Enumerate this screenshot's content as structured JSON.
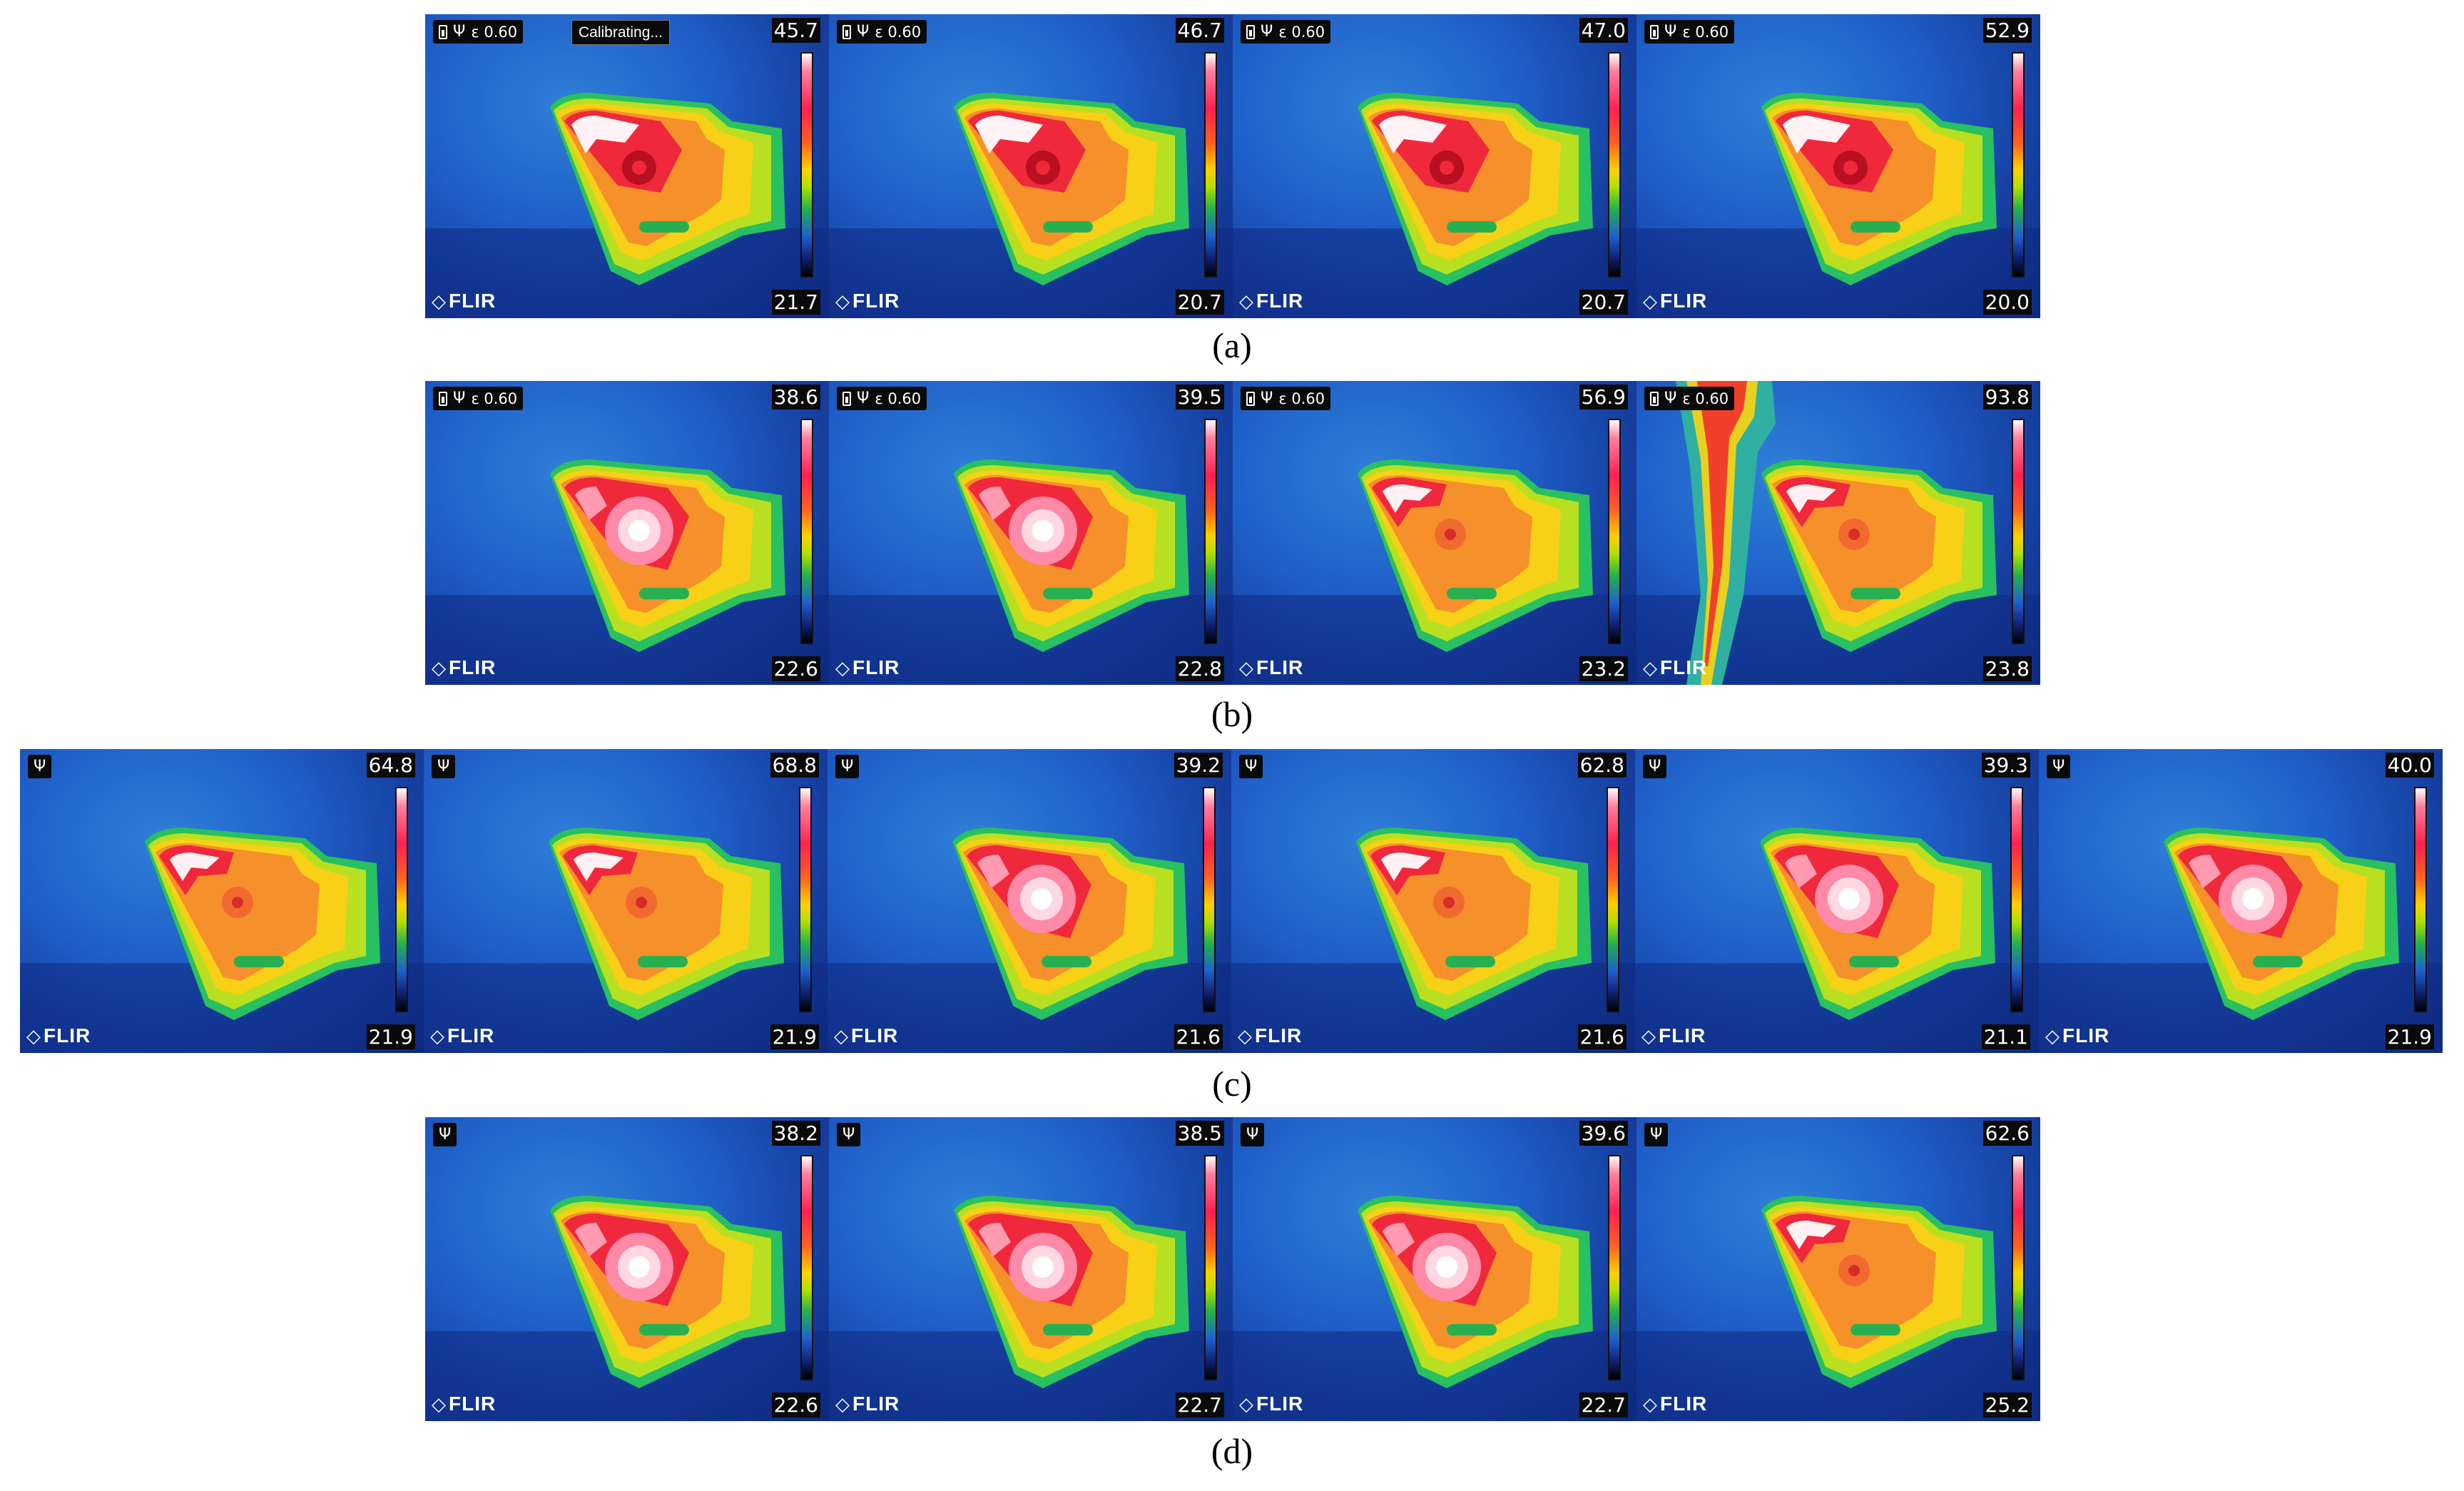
{
  "rows": [
    {
      "caption": "(a)",
      "panels": [
        {
          "min": "21.7",
          "max": "45.7",
          "status": "ε 0.60",
          "note": "Calibrating...",
          "variant": "a"
        },
        {
          "min": "20.7",
          "max": "46.7",
          "status": "ε 0.60",
          "variant": "a"
        },
        {
          "min": "20.7",
          "max": "47.0",
          "status": "ε 0.60",
          "variant": "a"
        },
        {
          "min": "20.0",
          "max": "52.9",
          "status": "ε 0.60",
          "variant": "a"
        }
      ]
    },
    {
      "caption": "(b)",
      "panels": [
        {
          "min": "22.6",
          "max": "38.6",
          "status": "ε 0.60",
          "variant": "b"
        },
        {
          "min": "22.8",
          "max": "39.5",
          "status": "ε 0.60",
          "variant": "b"
        },
        {
          "min": "23.2",
          "max": "56.9",
          "status": "ε 0.60",
          "variant": "c"
        },
        {
          "min": "23.8",
          "max": "93.8",
          "status": "ε 0.60",
          "variant": "d"
        }
      ]
    },
    {
      "caption": "(c)",
      "panels": [
        {
          "min": "21.9",
          "max": "64.8",
          "variant": "c"
        },
        {
          "min": "21.9",
          "max": "68.8",
          "variant": "c"
        },
        {
          "min": "21.6",
          "max": "39.2",
          "variant": "b"
        },
        {
          "min": "21.6",
          "max": "62.8",
          "variant": "c"
        },
        {
          "min": "21.1",
          "max": "39.3",
          "variant": "b"
        },
        {
          "min": "21.9",
          "max": "40.0",
          "variant": "b"
        }
      ]
    },
    {
      "caption": "(d)",
      "panels": [
        {
          "min": "22.6",
          "max": "38.2",
          "variant": "b"
        },
        {
          "min": "22.7",
          "max": "38.5",
          "variant": "b"
        },
        {
          "min": "22.7",
          "max": "39.6",
          "variant": "b"
        },
        {
          "min": "25.2",
          "max": "62.6",
          "variant": "c"
        }
      ]
    }
  ],
  "brand": "FLIR",
  "icons": {
    "battery": "battery-icon",
    "usb": "usb-icon",
    "logo": "flir-logo-icon"
  }
}
